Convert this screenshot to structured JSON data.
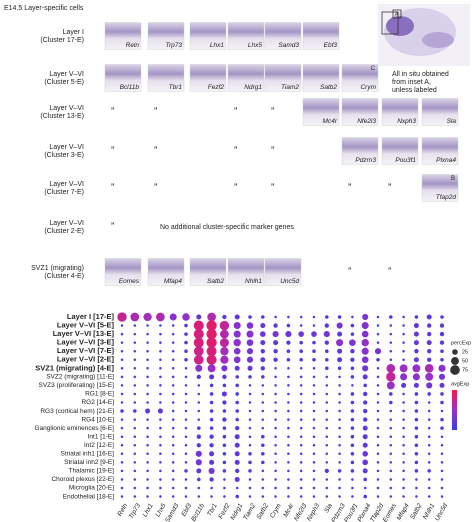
{
  "header": {
    "title": "E14.5 Layer-specific cells"
  },
  "note": [
    "All in situ obtained",
    "from inset A,",
    "unless labeled"
  ],
  "inset_labels": {
    "a": "A",
    "b": "B",
    "c": "C"
  },
  "panel_rows": [
    {
      "label": [
        "Layer I",
        "(Cluster 17-E)"
      ],
      "cells": [
        "Reln",
        "Trp73",
        "Lhx1",
        "Lhx5",
        "Samd3",
        "Ebf3"
      ]
    },
    {
      "label": [
        "Layer V–VI",
        "(Cluster 5-E)"
      ],
      "cells": [
        "Bcl11b",
        "Tbr1",
        "Fezf2",
        "Ndrg1",
        "Tiam2",
        "Satb2",
        "Crym"
      ]
    },
    {
      "label": [
        "Layer V–VI",
        "(Cluster 13-E)"
      ],
      "cells": [
        "”",
        "”",
        null,
        "”",
        "”",
        "Mc4r",
        "Nfe2l3",
        "Nxph3",
        "Sla"
      ]
    },
    {
      "label": [
        "Layer V–VI",
        "(Cluster 3-E)"
      ],
      "cells": [
        "”",
        "”",
        null,
        "”",
        "”",
        null,
        "Pdzrn3",
        "Pou3f1",
        "Plxna4"
      ]
    },
    {
      "label": [
        "Layer V–VI",
        "(Cluster 7-E)"
      ],
      "cells": [
        "”",
        "”",
        null,
        "”",
        "”",
        null,
        "”",
        "”",
        "Tfap2d"
      ]
    },
    {
      "label": [
        "Layer V–VI",
        "(Cluster 2-E)"
      ],
      "cells": [
        "”"
      ],
      "text": "No additional cluster-specific marker genes"
    },
    {
      "label": [
        "SVZ1 (migrating)",
        "(Cluster 4-E)"
      ],
      "cells": [
        "Eomes",
        "Mfap4",
        "Satb2",
        "Nhlh1",
        "Unc5d",
        null,
        "”",
        "”"
      ]
    }
  ],
  "chart_data": {
    "type": "dotplot",
    "categories": [
      "Reln",
      "Trp73",
      "Lhx1",
      "Lhx5",
      "Samd3",
      "Ebf3",
      "Bcl11b",
      "Tbr1",
      "Fezf2",
      "Ndrg1",
      "Tiam2",
      "Satb2",
      "Crym",
      "Mc4r",
      "Nfe2l3",
      "Nxph3",
      "Sla",
      "Pdzrn3",
      "Pou3f1",
      "Plxna4",
      "Tfap2d",
      "Eomes",
      "Mfap4",
      "Satb2",
      "Nhlh1",
      "Unc5d"
    ],
    "size_legend_title": "percExp",
    "size_ticks": [
      25,
      50,
      75
    ],
    "color_legend_title": "avgExp",
    "color_scale": [
      "#3c3ce6",
      "#9b30c8",
      "#ff1446"
    ],
    "series": [
      {
        "name": "Layer I [17-E]",
        "bold": true,
        "values": [
          70,
          60,
          55,
          60,
          40,
          45,
          20,
          60,
          15,
          20,
          10,
          10,
          5,
          5,
          5,
          5,
          10,
          10,
          5,
          30,
          5,
          10,
          5,
          10,
          20,
          10
        ]
      },
      {
        "name": "Layer V–VI [5-E]",
        "bold": true,
        "values": [
          5,
          5,
          5,
          5,
          5,
          10,
          80,
          85,
          70,
          40,
          35,
          20,
          15,
          10,
          5,
          5,
          15,
          30,
          10,
          40,
          5,
          5,
          5,
          20,
          15,
          15
        ]
      },
      {
        "name": "Layer V–VI [13-E]",
        "bold": true,
        "values": [
          5,
          5,
          5,
          5,
          5,
          10,
          80,
          85,
          60,
          40,
          40,
          25,
          30,
          30,
          25,
          25,
          30,
          20,
          10,
          35,
          5,
          5,
          5,
          20,
          15,
          15
        ]
      },
      {
        "name": "Layer V–VI [3-E]",
        "bold": true,
        "values": [
          5,
          5,
          5,
          5,
          5,
          10,
          80,
          85,
          65,
          45,
          35,
          20,
          20,
          15,
          10,
          10,
          15,
          40,
          35,
          45,
          5,
          5,
          5,
          20,
          20,
          15
        ]
      },
      {
        "name": "Layer V–VI [7-E]",
        "bold": true,
        "values": [
          5,
          5,
          5,
          5,
          5,
          10,
          75,
          80,
          55,
          35,
          30,
          15,
          15,
          10,
          10,
          10,
          10,
          20,
          15,
          40,
          30,
          5,
          5,
          15,
          15,
          10
        ]
      },
      {
        "name": "Layer V–VI [2-E]",
        "bold": true,
        "values": [
          5,
          5,
          5,
          5,
          5,
          10,
          75,
          80,
          55,
          35,
          30,
          20,
          15,
          10,
          10,
          10,
          10,
          20,
          15,
          35,
          10,
          5,
          5,
          20,
          15,
          10
        ]
      },
      {
        "name": "SVZ1 (migrating) [4-E]",
        "bold": true,
        "values": [
          5,
          5,
          5,
          5,
          5,
          5,
          40,
          50,
          30,
          20,
          20,
          15,
          5,
          5,
          5,
          5,
          10,
          10,
          10,
          30,
          5,
          60,
          50,
          50,
          60,
          40
        ]
      },
      {
        "name": "SVZ2 (migrating) [11-E]",
        "bold": false,
        "values": [
          5,
          5,
          5,
          5,
          5,
          5,
          15,
          20,
          15,
          10,
          10,
          10,
          5,
          5,
          5,
          5,
          5,
          5,
          10,
          20,
          5,
          70,
          40,
          40,
          50,
          30
        ]
      },
      {
        "name": "SVZ3 (proliferating) [15-E]",
        "bold": false,
        "values": [
          5,
          5,
          5,
          5,
          5,
          5,
          5,
          10,
          10,
          10,
          5,
          5,
          5,
          5,
          5,
          5,
          5,
          5,
          5,
          10,
          5,
          50,
          20,
          20,
          30,
          20
        ]
      },
      {
        "name": "RG1 [8-E]",
        "bold": false,
        "values": [
          5,
          5,
          5,
          5,
          5,
          5,
          5,
          10,
          20,
          10,
          5,
          5,
          5,
          5,
          5,
          5,
          5,
          5,
          10,
          15,
          5,
          10,
          5,
          10,
          10,
          10
        ]
      },
      {
        "name": "RG2 [14-E]",
        "bold": false,
        "values": [
          5,
          5,
          5,
          5,
          5,
          5,
          5,
          10,
          15,
          10,
          5,
          5,
          5,
          5,
          5,
          5,
          5,
          5,
          10,
          15,
          5,
          10,
          5,
          10,
          5,
          10
        ]
      },
      {
        "name": "RG3 (cortical hem) [21-E]",
        "bold": false,
        "values": [
          10,
          10,
          20,
          20,
          5,
          5,
          5,
          10,
          10,
          10,
          5,
          5,
          5,
          5,
          5,
          5,
          5,
          5,
          10,
          15,
          5,
          5,
          5,
          10,
          5,
          5
        ]
      },
      {
        "name": "RG4 [10-E]",
        "bold": false,
        "values": [
          5,
          5,
          5,
          5,
          5,
          5,
          5,
          10,
          15,
          10,
          5,
          5,
          5,
          5,
          5,
          5,
          5,
          5,
          10,
          15,
          5,
          5,
          5,
          10,
          5,
          10
        ]
      },
      {
        "name": "Ganglionic eminences [6-E]",
        "bold": false,
        "values": [
          5,
          5,
          5,
          5,
          5,
          5,
          10,
          10,
          10,
          15,
          5,
          5,
          5,
          5,
          5,
          5,
          5,
          5,
          10,
          20,
          5,
          5,
          5,
          10,
          5,
          10
        ]
      },
      {
        "name": "Int1 [1-E]",
        "bold": false,
        "values": [
          5,
          5,
          5,
          5,
          5,
          5,
          15,
          15,
          10,
          20,
          5,
          10,
          5,
          5,
          5,
          5,
          5,
          5,
          10,
          20,
          5,
          5,
          5,
          10,
          5,
          5
        ]
      },
      {
        "name": "Int2 [12-E]",
        "bold": false,
        "values": [
          5,
          5,
          5,
          5,
          5,
          5,
          15,
          15,
          10,
          20,
          5,
          10,
          5,
          5,
          5,
          5,
          5,
          5,
          10,
          20,
          5,
          5,
          5,
          10,
          5,
          5
        ]
      },
      {
        "name": "Striatal inh1 [16-E]",
        "bold": false,
        "values": [
          5,
          5,
          5,
          5,
          5,
          5,
          30,
          20,
          10,
          20,
          10,
          10,
          5,
          5,
          5,
          5,
          5,
          5,
          10,
          25,
          5,
          5,
          5,
          10,
          5,
          5
        ]
      },
      {
        "name": "Striatal inh2 [9-E]",
        "bold": false,
        "values": [
          5,
          5,
          5,
          5,
          5,
          5,
          30,
          20,
          10,
          20,
          10,
          10,
          5,
          5,
          5,
          5,
          5,
          5,
          10,
          25,
          5,
          5,
          5,
          10,
          5,
          5
        ]
      },
      {
        "name": "Thalamic [19-E]",
        "bold": false,
        "values": [
          5,
          5,
          5,
          5,
          5,
          10,
          20,
          30,
          10,
          15,
          10,
          5,
          5,
          5,
          5,
          5,
          15,
          10,
          10,
          20,
          5,
          5,
          5,
          10,
          10,
          5
        ]
      },
      {
        "name": "Choroid plexus [22-E]",
        "bold": false,
        "values": [
          5,
          5,
          5,
          5,
          5,
          5,
          10,
          15,
          5,
          20,
          5,
          5,
          5,
          5,
          5,
          5,
          5,
          5,
          5,
          10,
          5,
          5,
          5,
          5,
          5,
          5
        ]
      },
      {
        "name": "Microglia [20-E]",
        "bold": false,
        "values": [
          5,
          5,
          5,
          5,
          5,
          5,
          5,
          5,
          5,
          5,
          5,
          5,
          5,
          5,
          5,
          5,
          5,
          5,
          5,
          5,
          5,
          5,
          5,
          5,
          5,
          5
        ]
      },
      {
        "name": "Endothelial [18-E]",
        "bold": false,
        "values": [
          5,
          5,
          5,
          5,
          5,
          5,
          5,
          5,
          5,
          10,
          5,
          5,
          5,
          5,
          5,
          5,
          5,
          5,
          5,
          10,
          5,
          5,
          5,
          5,
          5,
          5
        ]
      }
    ]
  }
}
